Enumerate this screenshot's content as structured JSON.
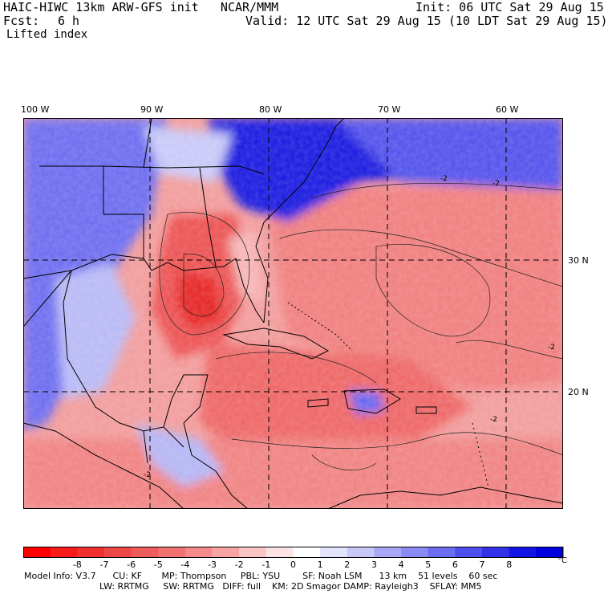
{
  "header": {
    "model_title": "HAIC-HIWC 13km ARW-GFS init   NCAR/MMM",
    "init": "Init: 06 UTC Sat 29 Aug 15",
    "fcst_label": "Fcst:",
    "fcst_value": "6 h",
    "valid": "Valid: 12 UTC Sat 29 Aug 15 (10 LDT Sat 29 Aug 15)",
    "field": "Lifted index"
  },
  "map": {
    "longitude_labels": [
      "100 W",
      "90 W",
      "80 W",
      "70 W",
      "60 W"
    ],
    "latitude_labels": [
      "30 N",
      "20 N"
    ],
    "contour_label": "-2",
    "palette": {
      "strong_negative": "#e8141e",
      "mid_negative": "#f07a7a",
      "weak_negative": "#f8c2c2",
      "near_zero": "#ffffff",
      "weak_positive": "#c8c8f8",
      "mid_positive": "#6464f0",
      "strong_positive": "#0000e0"
    }
  },
  "colorbar": {
    "labels": [
      "-8",
      "-7",
      "-6",
      "-5",
      "-4",
      "-3",
      "-2",
      "-1",
      "0",
      "1",
      "2",
      "3",
      "4",
      "5",
      "6",
      "7",
      "8"
    ],
    "unit": "°C",
    "colors": [
      "#ff0000",
      "#f61a1a",
      "#f03030",
      "#ec4646",
      "#ee5c5c",
      "#f27272",
      "#f48a8a",
      "#f6a4a4",
      "#f9c4c4",
      "#fde4e4",
      "#ffffff",
      "#e4e4fc",
      "#c8c8f8",
      "#a8a8f4",
      "#8a8af2",
      "#6c6cf0",
      "#4e4eec",
      "#3232e8",
      "#1414e4",
      "#0000dc"
    ]
  },
  "footer": {
    "line1": "Model Info: V3.7      CU: KF       MP: Thompson     PBL: YSU        SF: Noah LSM      13 km    51 levels    60 sec",
    "line2": "LW: RRTMG     SW: RRTMG   DIFF: full    KM: 2D Smagor DAMP: Rayleigh3    SFLAY: MM5"
  }
}
